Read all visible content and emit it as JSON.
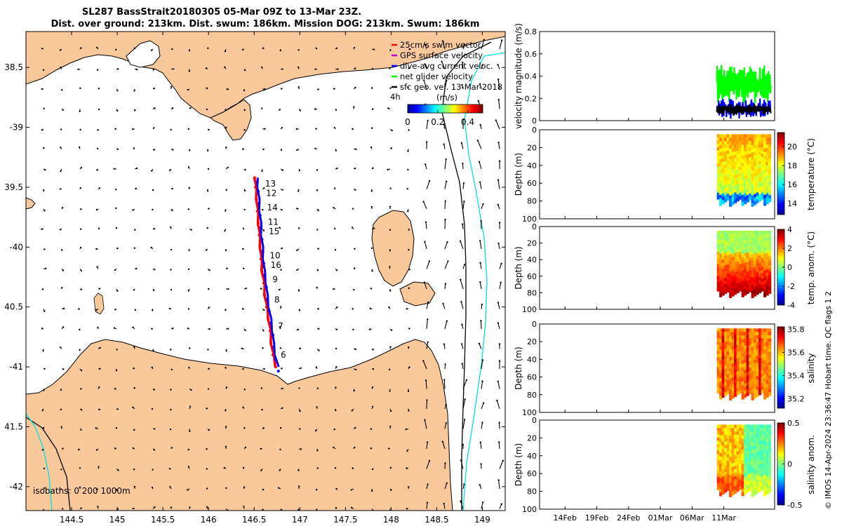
{
  "title": {
    "line1": "SL287 BassStrait20180305 05-Mar 09Z to 13-Mar 23Z.",
    "line2": "Dist. over ground: 213km. Dist. swum: 186km. Mission DOG: 213km. Swum: 186km"
  },
  "credit": "© IMOS 14-Apr-2024 23:36:47 Hobart time. QC flags 1  2",
  "colors": {
    "land": "#f9c89b",
    "coast": "#000000",
    "isobath_200": "#000000",
    "isobath_1000": "#00e0e0",
    "track_swim": "#ff0000",
    "track_dac": "#0000ff",
    "net_velocity": "#00ff00",
    "sfc_geo": "#000000"
  },
  "chart_data": [
    {
      "type": "scatter",
      "name_key": "map",
      "xlim": [
        144.0,
        149.25
      ],
      "ylim": [
        -42.2,
        -38.2
      ],
      "xticks": [
        144.5,
        145,
        145.5,
        146,
        146.5,
        147,
        147.5,
        148,
        148.5,
        149
      ],
      "xtick_labels": [
        "144.5",
        "145",
        "145.5",
        "146",
        "146.5",
        "147",
        "147.5",
        "148",
        "148.5",
        "149"
      ],
      "yticks": [
        -38.5,
        -39,
        -39.5,
        -40,
        -40.5,
        -41,
        -41.5,
        -42
      ],
      "ytick_labels": [
        "38.5",
        "-39",
        "39.5",
        "-40",
        "40.5",
        "-41",
        "41.5",
        "-42"
      ],
      "legend": [
        {
          "label": "25cm/s swim vector",
          "color": "#ff0000"
        },
        {
          "label": "GPS surface velocity",
          "color": "#cc00cc"
        },
        {
          "label": "dive-avg current veloc.",
          "color": "#0000ff"
        },
        {
          "label": "net glider velocity",
          "color": "#00ff00"
        },
        {
          "label": "sfc geo. vel. 13-Mar-2018",
          "color": "#000000"
        }
      ],
      "legend_extra": "4h",
      "colorbar": {
        "label": "(m/s)",
        "ticks": [
          0,
          0.2,
          0.4
        ],
        "tick_labels": [
          "0",
          "0.2",
          "0.4"
        ],
        "range": [
          0,
          0.5
        ]
      },
      "isobath_label": "isobaths: 0   200   1000m",
      "track": [
        [
          146.75,
          -41.0
        ],
        [
          146.72,
          -40.9
        ],
        [
          146.7,
          -40.8
        ],
        [
          146.69,
          -40.7
        ],
        [
          146.67,
          -40.6
        ],
        [
          146.65,
          -40.5
        ],
        [
          146.63,
          -40.4
        ],
        [
          146.62,
          -40.3
        ],
        [
          146.6,
          -40.2
        ],
        [
          146.59,
          -40.1
        ],
        [
          146.58,
          -40.0
        ],
        [
          146.57,
          -39.9
        ],
        [
          146.56,
          -39.8
        ],
        [
          146.55,
          -39.7
        ],
        [
          146.54,
          -39.6
        ],
        [
          146.53,
          -39.5
        ],
        [
          146.52,
          -39.42
        ]
      ],
      "day_labels": [
        {
          "text": "6",
          "lon": 146.79,
          "lat": -40.9
        },
        {
          "text": "7",
          "lon": 146.76,
          "lat": -40.66
        },
        {
          "text": "8",
          "lon": 146.72,
          "lat": -40.44
        },
        {
          "text": "9",
          "lon": 146.7,
          "lat": -40.27
        },
        {
          "text": "16",
          "lon": 146.68,
          "lat": -40.15
        },
        {
          "text": "10",
          "lon": 146.67,
          "lat": -40.07
        },
        {
          "text": "15",
          "lon": 146.66,
          "lat": -39.87
        },
        {
          "text": "11",
          "lon": 146.65,
          "lat": -39.79
        },
        {
          "text": "14",
          "lon": 146.64,
          "lat": -39.67
        },
        {
          "text": "12",
          "lon": 146.63,
          "lat": -39.55
        },
        {
          "text": "13",
          "lon": 146.62,
          "lat": -39.47
        }
      ]
    },
    {
      "type": "line",
      "name_key": "velocity",
      "ylabel": "velocity magnitude (m/s)",
      "ylim": [
        0,
        0.8
      ],
      "yticks": [
        0,
        0.2,
        0.4,
        0.6,
        0.8
      ],
      "ytick_labels": [
        "0",
        "0.2",
        "0.4",
        "0.6",
        "0.8"
      ],
      "xlim": [
        0,
        37
      ],
      "series": [
        {
          "key": "net",
          "color": "#00ff00",
          "range": [
            0.15,
            0.5
          ]
        },
        {
          "key": "dac",
          "color": "#0000ff",
          "range": [
            0.02,
            0.2
          ]
        },
        {
          "key": "sfc",
          "color": "#000000",
          "range": [
            0.05,
            0.15
          ]
        }
      ],
      "data_x_range": [
        27.9,
        36.4
      ]
    },
    {
      "type": "heatmap",
      "name_key": "temperature",
      "ylabel": "Depth (m)",
      "ylim": [
        100,
        0
      ],
      "yticks": [
        0,
        20,
        40,
        60,
        80,
        100
      ],
      "ytick_labels": [
        "0",
        "20",
        "40",
        "60",
        "80",
        "100"
      ],
      "colorbar_label": "temperature (°C)",
      "colorbar_ticks": [
        "20",
        "18",
        "16",
        "14"
      ],
      "colorbar_range": [
        12.8,
        21.5
      ],
      "colorbar_tick_values": [
        20,
        18,
        16,
        14
      ]
    },
    {
      "type": "heatmap",
      "name_key": "temp_anom",
      "ylabel": "Depth (m)",
      "ylim": [
        100,
        0
      ],
      "yticks": [
        0,
        20,
        40,
        60,
        80,
        100
      ],
      "ytick_labels": [
        "0",
        "20",
        "40",
        "60",
        "80",
        "100"
      ],
      "colorbar_label": "temp. anom. (°C)",
      "colorbar_ticks": [
        "4",
        "2",
        "0",
        "-2",
        "-4"
      ],
      "colorbar_range": [
        -4,
        4
      ],
      "colorbar_tick_values": [
        4,
        2,
        0,
        -2,
        -4
      ]
    },
    {
      "type": "heatmap",
      "name_key": "salinity",
      "ylabel": "Depth (m)",
      "ylim": [
        100,
        0
      ],
      "yticks": [
        0,
        20,
        40,
        60,
        80,
        100
      ],
      "ytick_labels": [
        "0",
        "20",
        "40",
        "60",
        "80",
        "100"
      ],
      "colorbar_label": "salinity",
      "colorbar_ticks": [
        "35.8",
        "35.6",
        "35.4",
        "35.2"
      ],
      "colorbar_range": [
        35.12,
        35.82
      ],
      "colorbar_tick_values": [
        35.8,
        35.6,
        35.4,
        35.2
      ]
    },
    {
      "type": "heatmap",
      "name_key": "sal_anom",
      "ylabel": "Depth (m)",
      "ylim": [
        100,
        0
      ],
      "yticks": [
        0,
        20,
        40,
        60,
        80,
        100
      ],
      "ytick_labels": [
        "0",
        "20",
        "40",
        "60",
        "80",
        "100"
      ],
      "colorbar_label": "salinity anom.",
      "colorbar_ticks": [
        "0.5",
        "0",
        "-0.5"
      ],
      "colorbar_range": [
        -0.5,
        0.5
      ],
      "colorbar_tick_values": [
        0.5,
        0,
        -0.5
      ],
      "xticks": [
        "14Feb",
        "19Feb",
        "24Feb",
        "01Mar",
        "06Mar",
        "11Mar"
      ],
      "xtick_values": [
        4,
        9,
        14,
        19,
        24,
        29
      ]
    }
  ]
}
